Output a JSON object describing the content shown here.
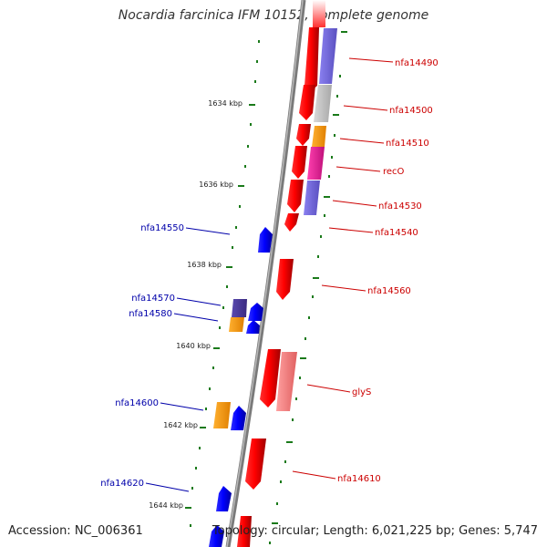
{
  "title": "Nocardia farcinica IFM 10152, complete genome",
  "accession": "Accession: NC_006361",
  "summary": "Topology: circular; Length: 6,021,225 bp; Genes: 5,747",
  "colors": {
    "forward": "#ff0000",
    "reverse": "#0000ff",
    "backbone": "#7a7a7a",
    "ticks": "#1a7a1a",
    "label_forward": "#cc0000",
    "label_reverse": "#0000aa"
  },
  "scale_labels": [
    "1634 kbp",
    "1636 kbp",
    "1638 kbp",
    "1640 kbp",
    "1642 kbp",
    "1644 kbp"
  ],
  "forward_gene_labels": [
    "nfa14490",
    "nfa14500",
    "nfa14510",
    "recO",
    "nfa14530",
    "nfa14540",
    "nfa14560",
    "glyS",
    "nfa14610"
  ],
  "reverse_gene_labels": [
    "nfa14550",
    "nfa14570",
    "nfa14580",
    "nfa14600",
    "nfa14620"
  ]
}
